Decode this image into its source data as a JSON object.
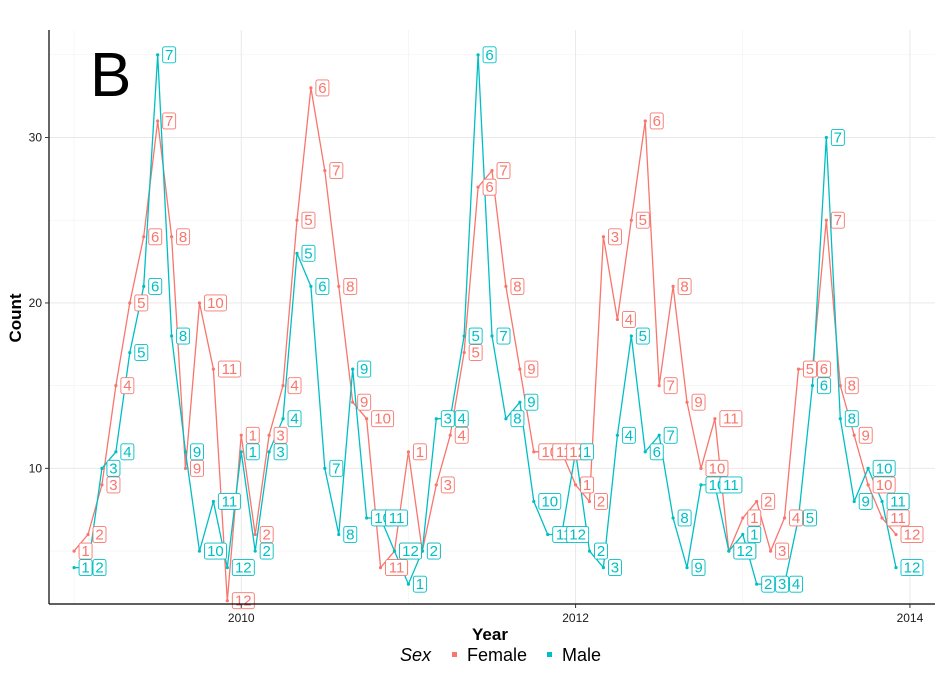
{
  "panel_tag": "B",
  "colors": {
    "Female": "#F8766D",
    "Male": "#00BFC4"
  },
  "chart_data": {
    "type": "line",
    "xlabel": "Year",
    "ylabel": "Count",
    "xlim": [
      2008.85,
      2014.15
    ],
    "ylim": [
      1.8,
      36.5
    ],
    "x_ticks": [
      2010,
      2012,
      2014
    ],
    "y_ticks": [
      10,
      20,
      30
    ],
    "grid": true,
    "legend": {
      "title": "Sex",
      "position": "bottom",
      "entries": [
        "Female",
        "Male"
      ]
    },
    "series": [
      {
        "name": "Female",
        "month_labels": [
          "1",
          "2",
          "3",
          "4",
          "5",
          "6",
          "7",
          "8",
          "9",
          "10",
          "11",
          "12",
          "1",
          "2",
          "3",
          "4",
          "5",
          "6",
          "7",
          "8",
          "9",
          "10",
          "11",
          "12",
          "1",
          "2",
          "3",
          "4",
          "5",
          "6",
          "7",
          "8",
          "9",
          "10",
          "11",
          "12",
          "1",
          "2",
          "3",
          "4",
          "5",
          "6",
          "7",
          "8",
          "9",
          "10",
          "11",
          "12",
          "1",
          "2",
          "3",
          "4",
          "5",
          "6",
          "7",
          "8",
          "9",
          "10",
          "11",
          "12"
        ],
        "values": [
          5,
          6,
          9,
          15,
          20,
          24,
          31,
          24,
          10,
          20,
          16,
          2,
          12,
          6,
          12,
          15,
          25,
          33,
          28,
          21,
          14,
          13,
          4,
          5,
          11,
          5,
          9,
          12,
          17,
          27,
          28,
          21,
          16,
          11,
          11,
          11,
          9,
          8,
          24,
          19,
          25,
          31,
          15,
          21,
          14,
          10,
          13,
          5,
          7,
          8,
          5,
          7,
          16,
          16,
          25,
          15,
          12,
          9,
          7,
          6
        ]
      },
      {
        "name": "Male",
        "month_labels": [
          "1",
          "2",
          "3",
          "4",
          "5",
          "6",
          "7",
          "8",
          "9",
          "10",
          "11",
          "12",
          "1",
          "2",
          "3",
          "4",
          "5",
          "6",
          "7",
          "8",
          "9",
          "10",
          "11",
          "12",
          "1",
          "2",
          "3",
          "4",
          "5",
          "6",
          "7",
          "8",
          "9",
          "10",
          "11",
          "12",
          "1",
          "2",
          "3",
          "4",
          "5",
          "6",
          "7",
          "8",
          "9",
          "10",
          "11",
          "12",
          "1",
          "2",
          "3",
          "4",
          "5",
          "6",
          "7",
          "8",
          "9",
          "10",
          "11",
          "12"
        ],
        "values": [
          4,
          4,
          10,
          11,
          17,
          21,
          35,
          18,
          11,
          5,
          8,
          4,
          11,
          5,
          11,
          13,
          23,
          21,
          10,
          6,
          16,
          7,
          7,
          5,
          3,
          5,
          13,
          13,
          18,
          35,
          18,
          13,
          14,
          8,
          6,
          6,
          11,
          5,
          4,
          12,
          18,
          11,
          12,
          7,
          4,
          9,
          9,
          5,
          6,
          3,
          3,
          3,
          7,
          15,
          30,
          13,
          8,
          10,
          8,
          4
        ]
      }
    ]
  }
}
